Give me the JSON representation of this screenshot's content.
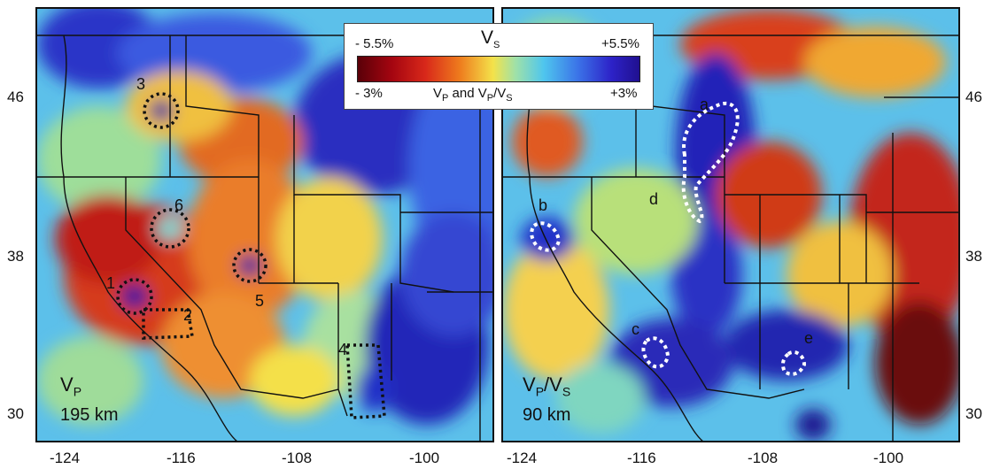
{
  "colorbar": {
    "vs_label": "V",
    "vs_sub": "S",
    "vs_min": "- 5.5%",
    "vs_max": "+5.5%",
    "vp_min": "- 3%",
    "vp_max": "+3%",
    "vp_label_a": "V",
    "vp_label_a_sub": "P",
    "vp_label_b": " and V",
    "vp_label_b_sub": "P",
    "vp_label_c": "/V",
    "vp_label_c_sub": "S",
    "colors": [
      "#5a0008",
      "#a40510",
      "#d8281a",
      "#ee7a1d",
      "#f4e24a",
      "#9fe1a8",
      "#4fc6ee",
      "#3b74e8",
      "#2d22c8",
      "#20108f"
    ]
  },
  "left_panel": {
    "title_main": "V",
    "title_sub": "P",
    "depth": "195 km",
    "markers": [
      "1",
      "2",
      "3",
      "4",
      "5",
      "6"
    ]
  },
  "right_panel": {
    "title_main": "V",
    "title_sub": "P",
    "title_sep": "/V",
    "title_sub2": "S",
    "depth": "90 km",
    "markers": [
      "a",
      "b",
      "c",
      "d",
      "e"
    ]
  },
  "axes": {
    "y_ticks": [
      "46",
      "38",
      "30"
    ],
    "x_ticks_left": [
      "-124",
      "-116",
      "-108",
      "-100"
    ],
    "x_ticks_right": [
      "-124",
      "-116",
      "-108",
      "-100"
    ]
  }
}
